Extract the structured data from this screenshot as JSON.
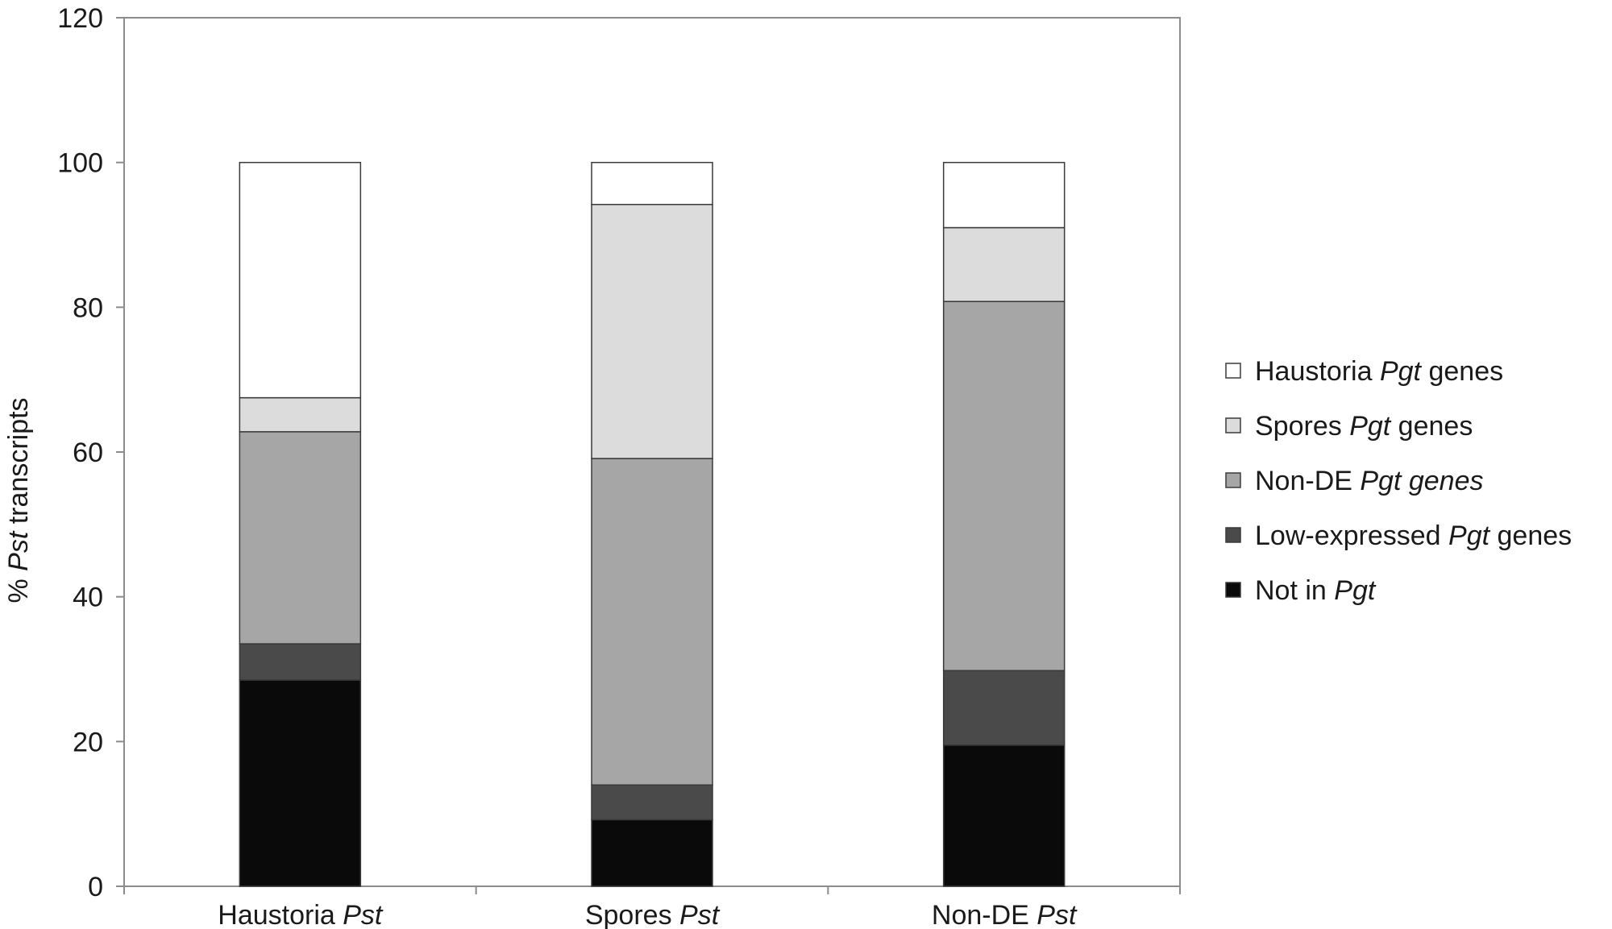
{
  "chart_data": {
    "type": "bar",
    "stacked": true,
    "categories": [
      {
        "main": "Haustoria ",
        "italic": "Pst"
      },
      {
        "main": "Spores ",
        "italic": "Pst"
      },
      {
        "main": "Non-DE ",
        "italic": "Pst"
      }
    ],
    "series": [
      {
        "name": "Not in Pgt",
        "name_parts": [
          {
            "text": "Not in ",
            "italic": false
          },
          {
            "text": "Pgt",
            "italic": true
          }
        ],
        "color": "#0a0a0a",
        "values": [
          28.5,
          9.2,
          19.5
        ]
      },
      {
        "name": "Low-expressed Pgt genes",
        "name_parts": [
          {
            "text": "Low-expressed ",
            "italic": false
          },
          {
            "text": "Pgt",
            "italic": true
          },
          {
            "text": " genes",
            "italic": false
          }
        ],
        "color": "#4a4a4a",
        "values": [
          5.0,
          4.8,
          10.3
        ]
      },
      {
        "name": "Non-DE Pgt genes",
        "name_parts": [
          {
            "text": "Non-DE ",
            "italic": false
          },
          {
            "text": "Pgt genes",
            "italic": true
          }
        ],
        "color": "#a6a6a6",
        "values": [
          29.3,
          45.1,
          51.0
        ]
      },
      {
        "name": "Spores Pgt genes",
        "name_parts": [
          {
            "text": "Spores ",
            "italic": false
          },
          {
            "text": "Pgt",
            "italic": true
          },
          {
            "text": " genes",
            "italic": false
          }
        ],
        "color": "#dcdcdc",
        "values": [
          4.7,
          35.1,
          10.2
        ]
      },
      {
        "name": "Haustoria Pgt genes",
        "name_parts": [
          {
            "text": "Haustoria ",
            "italic": false
          },
          {
            "text": "Pgt",
            "italic": true
          },
          {
            "text": " genes",
            "italic": false
          }
        ],
        "color": "#ffffff",
        "values": [
          32.5,
          5.8,
          9.0
        ]
      }
    ],
    "ylabel_parts": [
      {
        "text": "% ",
        "italic": false
      },
      {
        "text": "Pst",
        "italic": true
      },
      {
        "text": " transcripts",
        "italic": false
      }
    ],
    "ylim": [
      0,
      120
    ],
    "yticks": [
      0,
      20,
      40,
      60,
      80,
      100,
      120
    ],
    "legend_position": "right",
    "grid": false
  }
}
